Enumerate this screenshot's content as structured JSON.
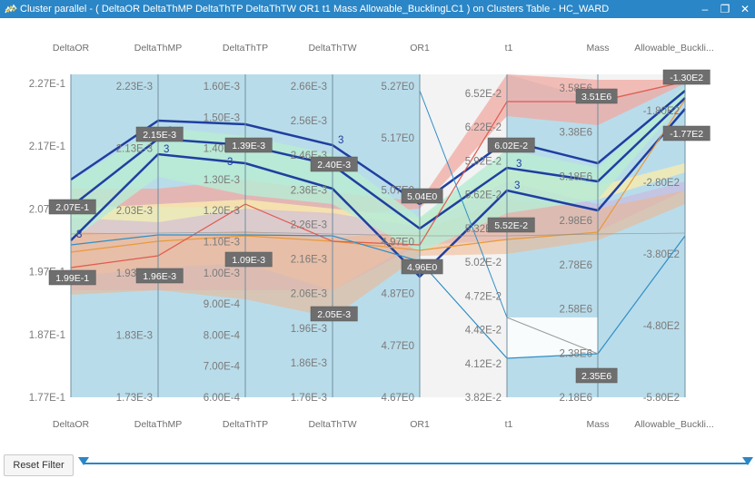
{
  "window": {
    "title": "Cluster parallel - ( DeltaOR  DeltaThMP  DeltaThTP  DeltaThTW  OR1  t1  Mass  Allowable_BucklingLC1 ) on Clusters Table - HC_WARD",
    "minimize": "–",
    "restore": "❐",
    "close": "✕"
  },
  "axes": [
    {
      "name": "DeltaOR",
      "top_label": "DeltaOR",
      "bottom_label": "DeltaOR",
      "ticks": [
        "2.27E-1",
        "2.17E-1",
        "2.07E-1",
        "1.97E-1",
        "1.87E-1",
        "1.77E-1"
      ]
    },
    {
      "name": "DeltaThMP",
      "top_label": "DeltaThMP",
      "bottom_label": "DeltaThMP",
      "ticks": [
        "2.23E-3",
        "2.13E-3",
        "2.03E-3",
        "1.93E-3",
        "1.83E-3",
        "1.73E-3"
      ]
    },
    {
      "name": "DeltaThTP",
      "top_label": "DeltaThTP",
      "bottom_label": "DeltaThTP",
      "ticks": [
        "1.60E-3",
        "1.50E-3",
        "1.40E-3",
        "1.30E-3",
        "1.20E-3",
        "1.10E-3",
        "1.00E-3",
        "9.00E-4",
        "8.00E-4",
        "7.00E-4",
        "6.00E-4"
      ]
    },
    {
      "name": "DeltaThTW",
      "top_label": "DeltaThTW",
      "bottom_label": "DeltaThTW",
      "ticks": [
        "2.66E-3",
        "2.56E-3",
        "2.46E-3",
        "2.36E-3",
        "2.26E-3",
        "2.16E-3",
        "2.06E-3",
        "1.96E-3",
        "1.86E-3",
        "1.76E-3"
      ]
    },
    {
      "name": "OR1",
      "top_label": "OR1",
      "bottom_label": "OR1",
      "ticks": [
        "5.27E0",
        "5.17E0",
        "5.07E0",
        "4.97E0",
        "4.87E0",
        "4.77E0",
        "4.67E0"
      ]
    },
    {
      "name": "t1",
      "top_label": "t1",
      "bottom_label": "t1",
      "ticks": [
        "6.52E-2",
        "6.22E-2",
        "5.92E-2",
        "5.62E-2",
        "5.32E-2",
        "5.02E-2",
        "4.72E-2",
        "4.42E-2",
        "4.12E-2",
        "3.82E-2"
      ]
    },
    {
      "name": "Mass",
      "top_label": "Mass",
      "bottom_label": "Mass",
      "ticks": [
        "3.58E6",
        "3.38E6",
        "3.18E6",
        "2.98E6",
        "2.78E6",
        "2.58E6",
        "2.38E6",
        "2.18E6"
      ]
    },
    {
      "name": "Allowable_Buckli...",
      "top_label": "Allowable_Buckli...",
      "bottom_label": "Allowable_Buckli...",
      "ticks": [
        "-1.80E2",
        "-2.80E2",
        "-3.80E2",
        "-4.80E2",
        "-5.80E2"
      ]
    }
  ],
  "value_tags": [
    {
      "text": "2.07E-1"
    },
    {
      "text": "1.99E-1"
    },
    {
      "text": "2.15E-3"
    },
    {
      "text": "1.96E-3"
    },
    {
      "text": "1.39E-3"
    },
    {
      "text": "1.09E-3"
    },
    {
      "text": "2.40E-3"
    },
    {
      "text": "2.05E-3"
    },
    {
      "text": "5.04E0"
    },
    {
      "text": "4.96E0"
    },
    {
      "text": "6.02E-2"
    },
    {
      "text": "5.52E-2"
    },
    {
      "text": "3.51E6"
    },
    {
      "text": "2.35E6"
    },
    {
      "text": "-1.30E2"
    },
    {
      "text": "-1.77E2"
    }
  ],
  "cluster_labels": [
    "3",
    "3",
    "3",
    "3",
    "3",
    "3",
    "3",
    "3"
  ],
  "colors": {
    "titlebar": "#2a86c6",
    "band_blue": "#9fd3ea",
    "band_red": "#f2a9a2",
    "band_green": "#b9ebd4",
    "band_yellow": "#f7ecae",
    "band_purple": "#cdb3dc",
    "line_dark": "#1f3fa0",
    "line_mid": "#2f8fc6"
  },
  "reset_button": "Reset Filter"
}
